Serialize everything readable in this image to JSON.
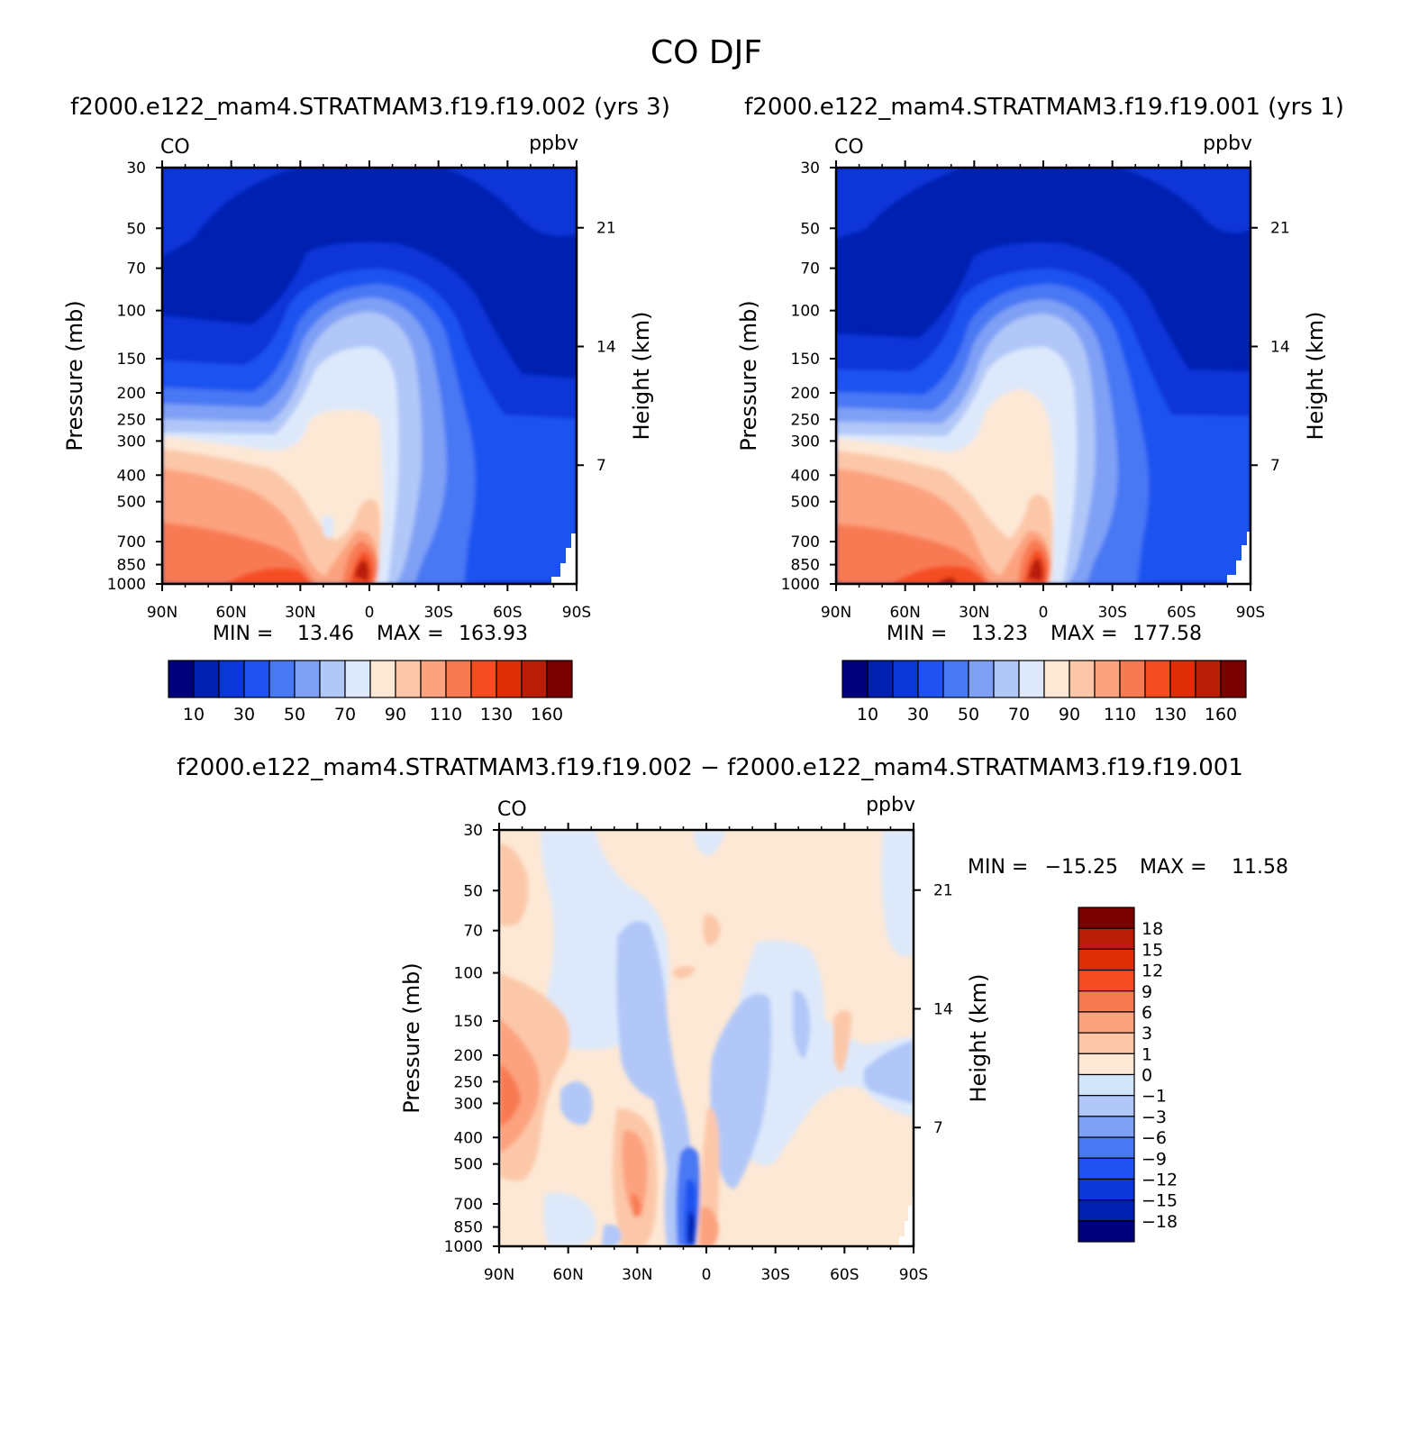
{
  "figure": {
    "title": "CO DJF",
    "diff_title": "f2000.e122_mam4.STRATMAM3.f19.f19.002 − f2000.e122_mam4.STRATMAM3.f19.f19.001"
  },
  "colors": {
    "abs_palette": [
      "#00007a",
      "#0020b0",
      "#0b36d8",
      "#1f52f0",
      "#4878f4",
      "#7fa0f5",
      "#b1c7f8",
      "#dde9fb",
      "#fde8d5",
      "#fcc7a8",
      "#fca27e",
      "#f87a52",
      "#f54d22",
      "#dd2e08",
      "#b81d08",
      "#7a0000"
    ],
    "diff_palette": [
      "#00007a",
      "#0020b0",
      "#0b36d8",
      "#1f52f0",
      "#4878f4",
      "#7fa0f5",
      "#b1c7f8",
      "#d3e5fb",
      "#fde8d5",
      "#fcc7a8",
      "#fca27e",
      "#f87a52",
      "#f54d22",
      "#dd2e08",
      "#b81d08",
      "#7a0000"
    ]
  },
  "chart_data": [
    {
      "type": "heatmap",
      "title": "f2000.e122_mam4.STRATMAM3.f19.f19.002 (yrs 3)",
      "left_label": "CO",
      "right_label": "ppbv",
      "xlabel": "",
      "ylabel": "Pressure (mb)",
      "ylabel_right": "Height (km)",
      "x_ticks": [
        "90N",
        "60N",
        "30N",
        "0",
        "30S",
        "60S",
        "90S"
      ],
      "y_ticks": [
        30,
        50,
        70,
        100,
        150,
        200,
        250,
        300,
        400,
        500,
        700,
        850,
        1000
      ],
      "y_right_ticks": [
        21,
        14,
        7
      ],
      "ylim": [
        1000,
        30
      ],
      "y_scale": "log",
      "min_label": "MIN =",
      "min_value": "13.46",
      "max_label": "MAX =",
      "max_value": "163.93",
      "colorbar_levels": [
        10,
        20,
        30,
        40,
        50,
        60,
        70,
        80,
        90,
        100,
        110,
        120,
        130,
        140,
        150,
        160
      ],
      "colorbar_labels": [
        "10",
        "30",
        "50",
        "70",
        "90",
        "110",
        "130",
        "160"
      ]
    },
    {
      "type": "heatmap",
      "title": "f2000.e122_mam4.STRATMAM3.f19.f19.001 (yrs 1)",
      "left_label": "CO",
      "right_label": "ppbv",
      "xlabel": "",
      "ylabel": "Pressure (mb)",
      "ylabel_right": "Height (km)",
      "x_ticks": [
        "90N",
        "60N",
        "30N",
        "0",
        "30S",
        "60S",
        "90S"
      ],
      "y_ticks": [
        30,
        50,
        70,
        100,
        150,
        200,
        250,
        300,
        400,
        500,
        700,
        850,
        1000
      ],
      "y_right_ticks": [
        21,
        14,
        7
      ],
      "ylim": [
        1000,
        30
      ],
      "y_scale": "log",
      "min_label": "MIN =",
      "min_value": "13.23",
      "max_label": "MAX =",
      "max_value": "177.58",
      "colorbar_levels": [
        10,
        20,
        30,
        40,
        50,
        60,
        70,
        80,
        90,
        100,
        110,
        120,
        130,
        140,
        150,
        160
      ],
      "colorbar_labels": [
        "10",
        "30",
        "50",
        "70",
        "90",
        "110",
        "130",
        "160"
      ]
    },
    {
      "type": "heatmap",
      "title": "",
      "left_label": "CO",
      "right_label": "ppbv",
      "xlabel": "",
      "ylabel": "Pressure (mb)",
      "ylabel_right": "Height (km)",
      "x_ticks": [
        "90N",
        "60N",
        "30N",
        "0",
        "30S",
        "60S",
        "90S"
      ],
      "y_ticks": [
        30,
        50,
        70,
        100,
        150,
        200,
        250,
        300,
        400,
        500,
        700,
        850,
        1000
      ],
      "y_right_ticks": [
        21,
        14,
        7
      ],
      "ylim": [
        1000,
        30
      ],
      "y_scale": "log",
      "min_label": "MIN =",
      "min_value": "−15.25",
      "max_label": "MAX =",
      "max_value": "11.58",
      "colorbar_levels": [
        -18,
        -15,
        -12,
        -9,
        -6,
        -3,
        -1,
        0,
        1,
        3,
        6,
        9,
        12,
        15,
        18
      ],
      "colorbar_labels": [
        "18",
        "15",
        "12",
        "9",
        "6",
        "3",
        "1",
        "0",
        "−1",
        "−3",
        "−6",
        "−9",
        "−12",
        "−15",
        "−18"
      ]
    }
  ]
}
